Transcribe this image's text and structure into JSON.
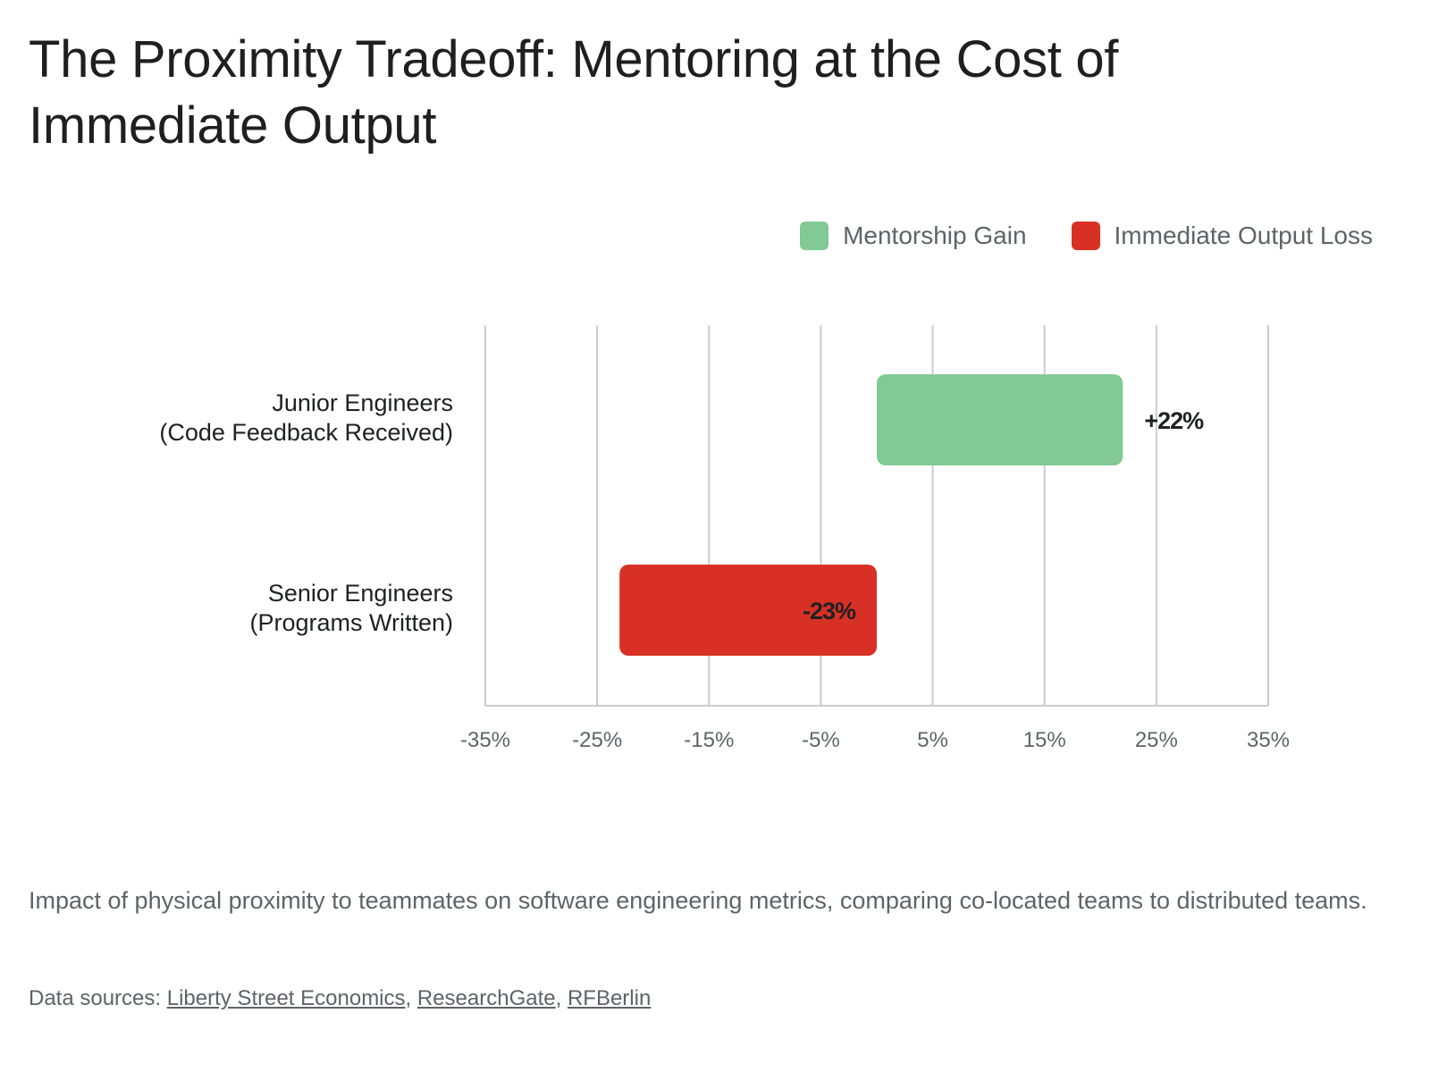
{
  "chart_data": {
    "type": "bar",
    "orientation": "horizontal",
    "title": "The Proximity Tradeoff: Mentoring at the Cost of Immediate Output",
    "categories": [
      "Junior Engineers (Code Feedback Received)",
      "Senior Engineers (Programs Written)"
    ],
    "category_lines": [
      [
        "Junior Engineers",
        "(Code Feedback Received)"
      ],
      [
        "Senior Engineers",
        "(Programs Written)"
      ]
    ],
    "series": [
      {
        "name": "Mentorship Gain",
        "values": [
          22,
          null
        ]
      },
      {
        "name": "Immediate Output Loss",
        "values": [
          null,
          -23
        ]
      }
    ],
    "data_labels": [
      "+22%",
      "-23%"
    ],
    "xlim": [
      -35,
      35
    ],
    "xticks": [
      -35,
      -25,
      -15,
      -5,
      5,
      15,
      25,
      35
    ],
    "xtick_labels": [
      "-35%",
      "-25%",
      "-15%",
      "-5%",
      "5%",
      "15%",
      "25%",
      "35%"
    ],
    "grid": true,
    "legend_position": "top-right",
    "colors": {
      "Mentorship Gain": "#81c995",
      "Immediate Output Loss": "#d93025"
    }
  },
  "legend": [
    {
      "label": "Mentorship Gain",
      "color": "#81c995"
    },
    {
      "label": "Immediate Output Loss",
      "color": "#d93025"
    }
  ],
  "caption": "Impact of physical proximity to teammates on software engineering metrics, comparing co-located teams to distributed teams.",
  "sources": {
    "prefix": "Data sources: ",
    "links": [
      "Liberty Street Economics",
      "ResearchGate",
      "RFBerlin"
    ],
    "separator": ", "
  }
}
